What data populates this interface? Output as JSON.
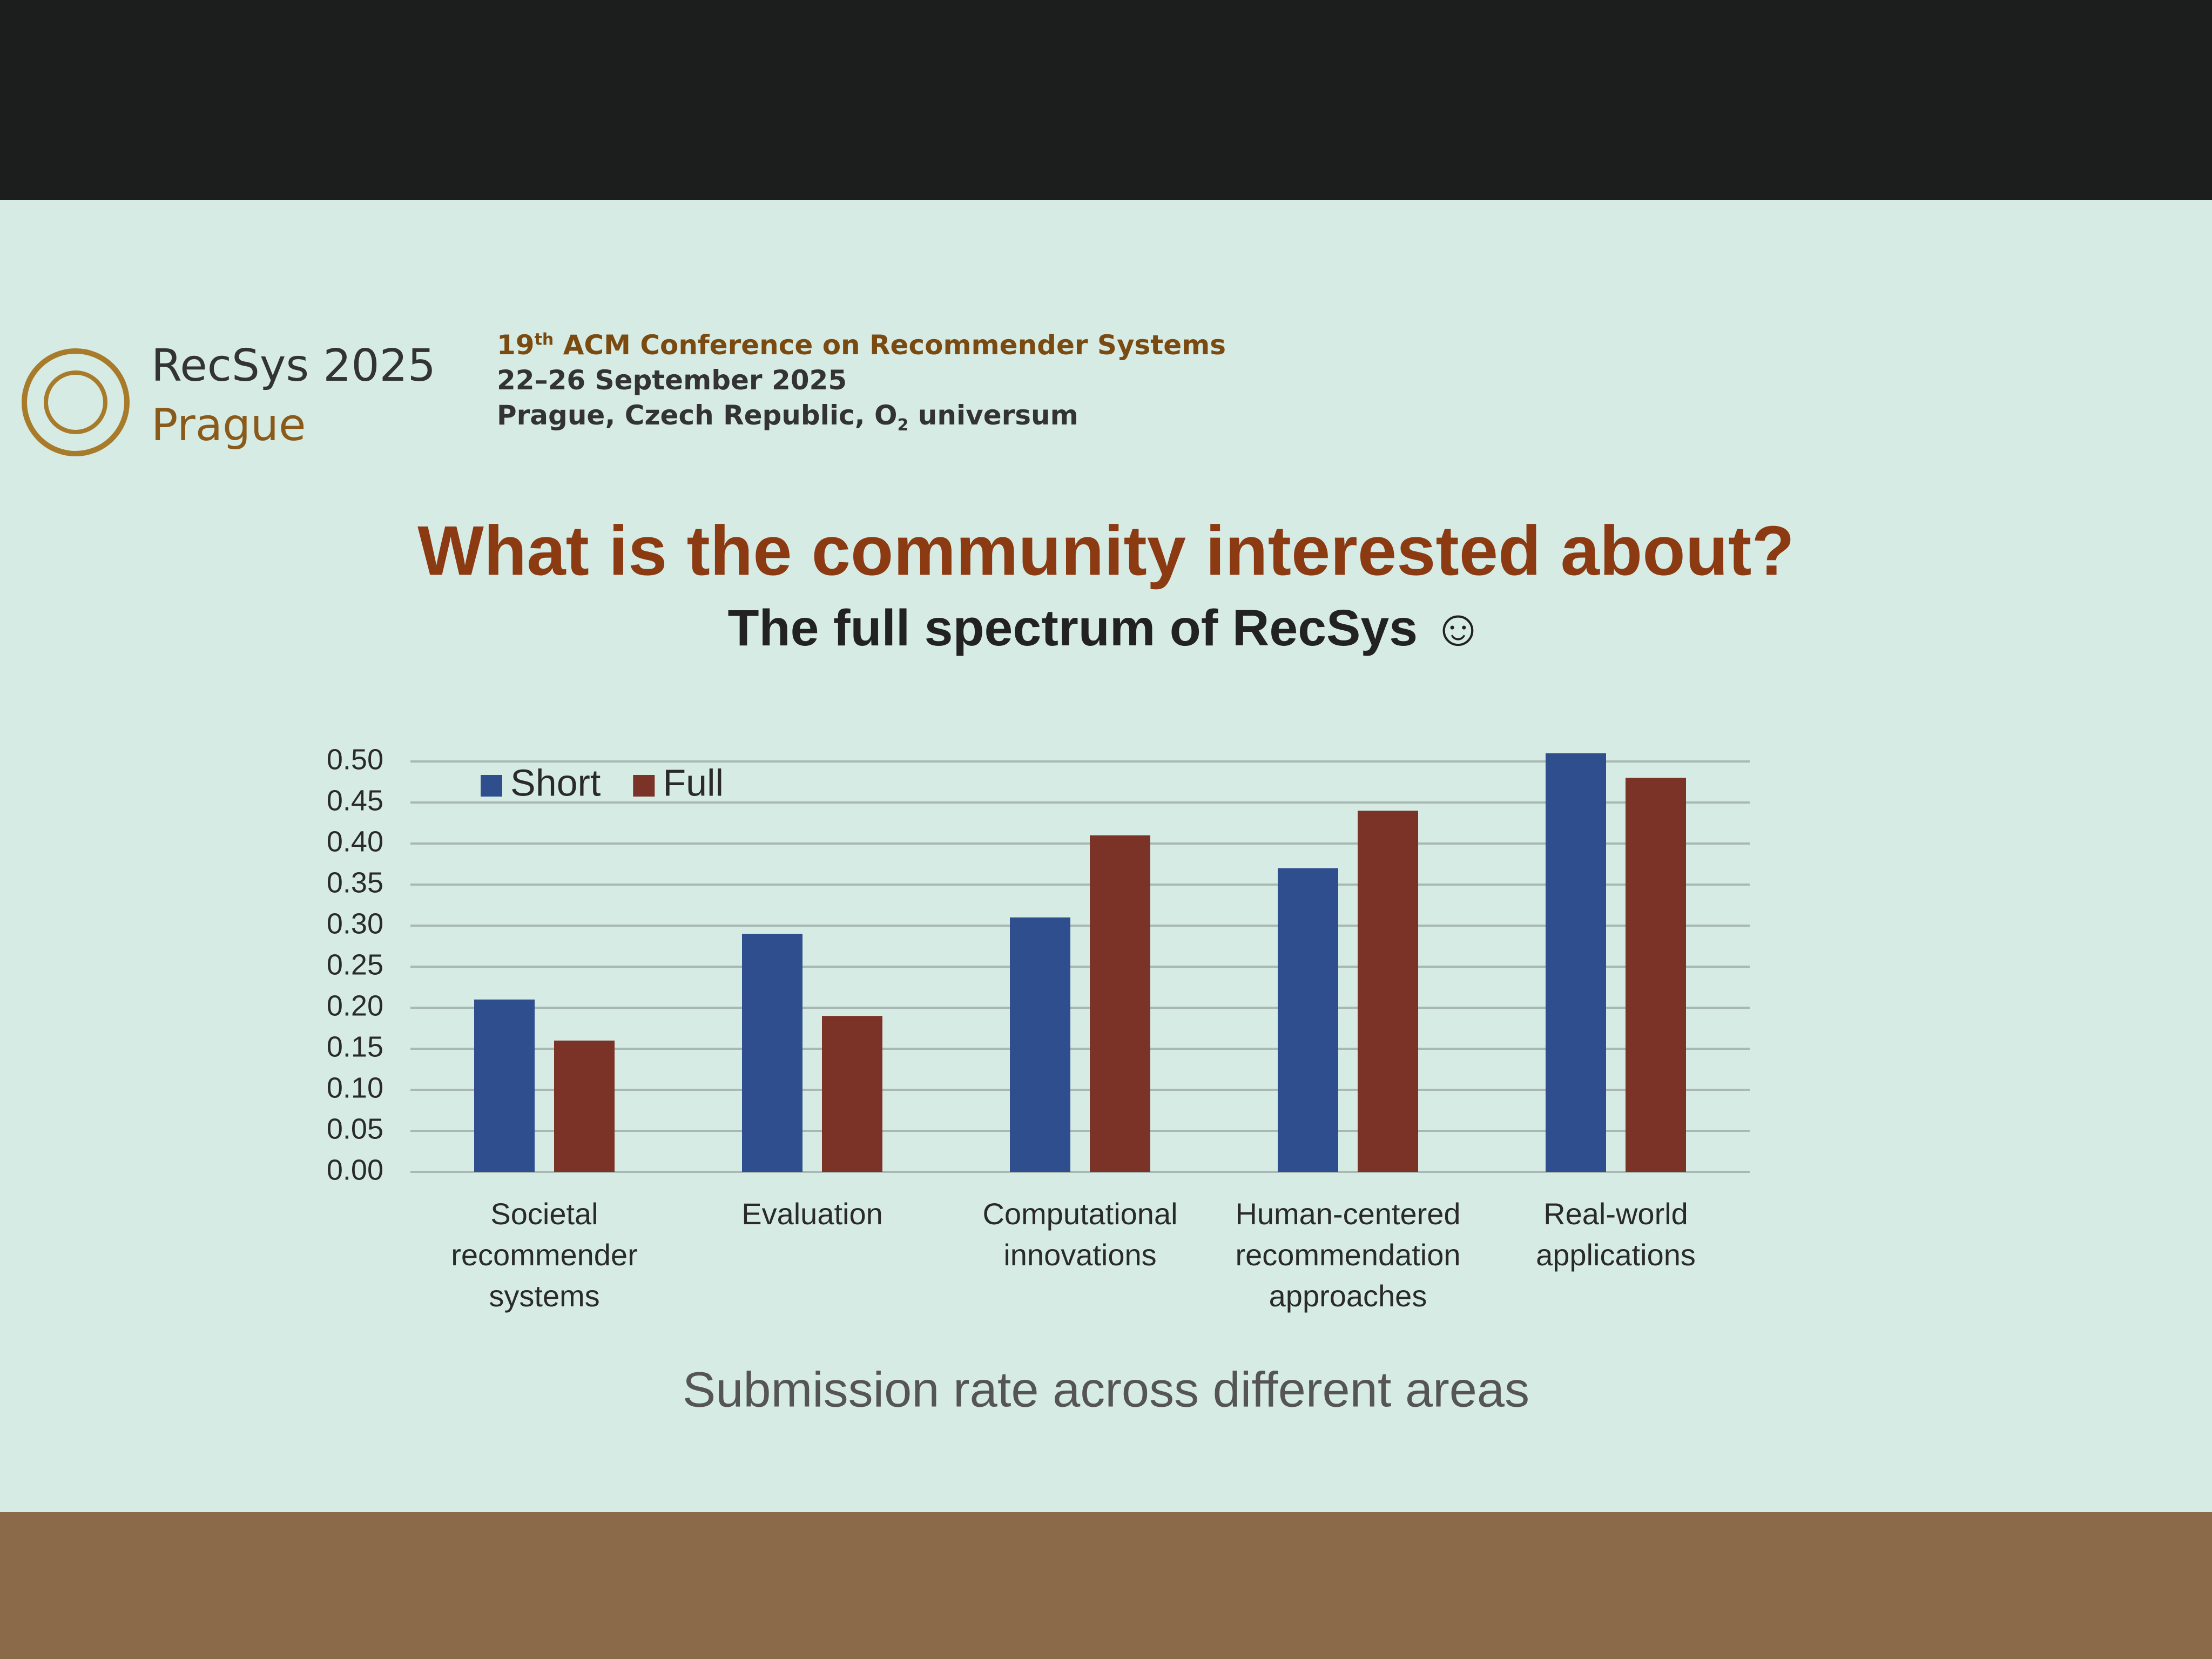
{
  "header": {
    "logo_name": "RecSys 2025",
    "logo_city": "Prague",
    "conference_ordinal": "19",
    "conference_ordinal_suffix": "th",
    "conference_name": "ACM Conference on Recommender Systems",
    "dates": "22–26 September 2025",
    "venue_before": "Prague, Czech Republic, O",
    "venue_subscript": "2",
    "venue_after": " universum"
  },
  "chart_data": {
    "type": "bar",
    "title": "What is the community interested about?",
    "subtitle": "The full spectrum of RecSys ☺",
    "caption": "Submission rate across different areas",
    "categories": [
      "Societal recommender systems",
      "Evaluation",
      "Computational innovations",
      "Human-centered recommendation approaches",
      "Real-world applications"
    ],
    "series": [
      {
        "name": "Short",
        "color": "#2f4e8e",
        "values": [
          0.21,
          0.29,
          0.31,
          0.37,
          0.51
        ]
      },
      {
        "name": "Full",
        "color": "#7b3328",
        "values": [
          0.16,
          0.19,
          0.41,
          0.44,
          0.48
        ]
      }
    ],
    "ylim": [
      0,
      0.55
    ],
    "yticks": [
      {
        "value": 0,
        "label": "0.00"
      },
      {
        "value": 0.05,
        "label": "0.05"
      },
      {
        "value": 0.1,
        "label": "0.10"
      },
      {
        "value": 0.15,
        "label": "0.15"
      },
      {
        "value": 0.2,
        "label": "0.20"
      },
      {
        "value": 0.25,
        "label": "0.25"
      },
      {
        "value": 0.3,
        "label": "0.30"
      },
      {
        "value": 0.35,
        "label": "0.35"
      },
      {
        "value": 0.4,
        "label": "0.40"
      },
      {
        "value": 0.45,
        "label": "0.45"
      },
      {
        "value": 0.5,
        "label": "0.50"
      }
    ],
    "grid": true,
    "legend": "top-left"
  }
}
